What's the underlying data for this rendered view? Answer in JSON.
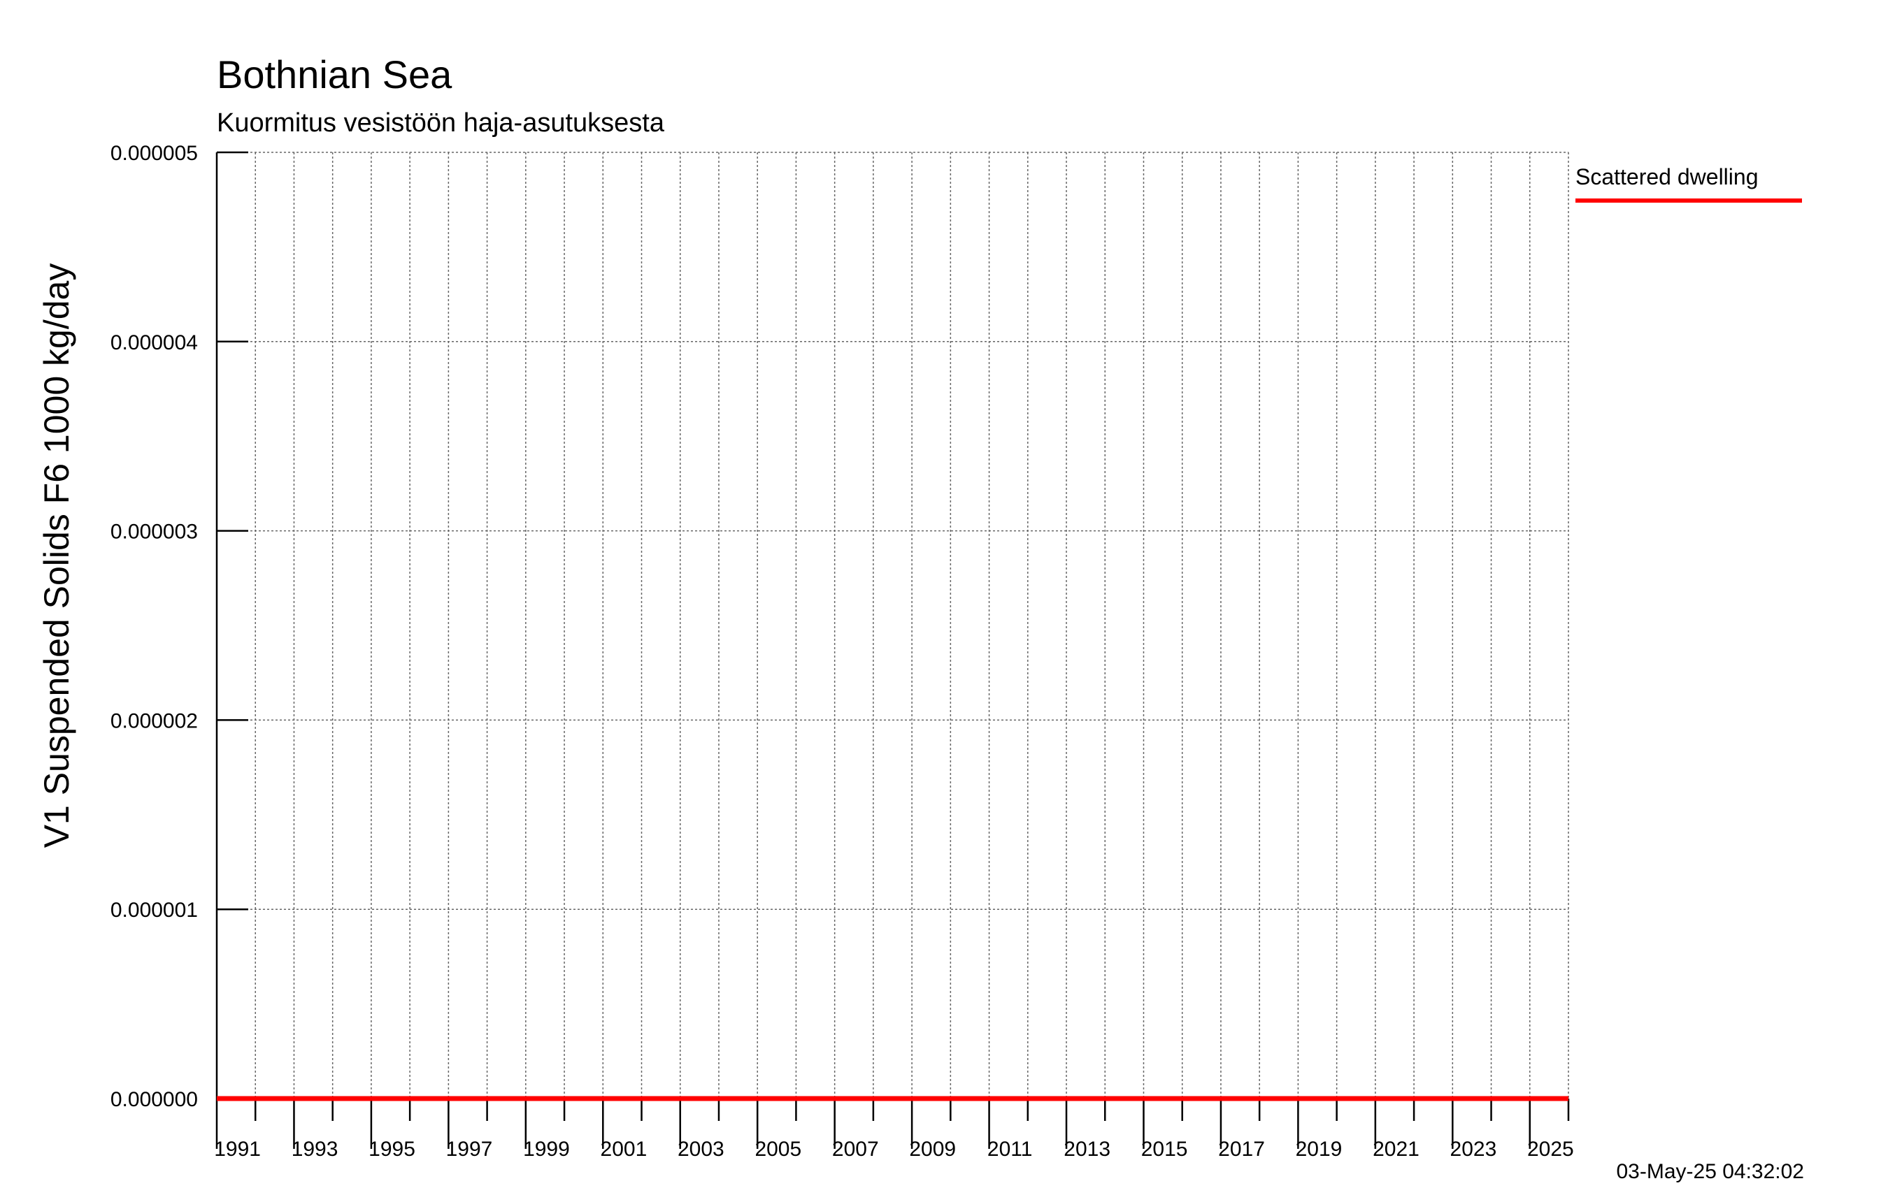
{
  "chart_data": {
    "type": "line",
    "title": "Bothnian Sea",
    "subtitle": "Kuormitus vesistöön haja-asutuksesta",
    "ylabel": "V1 Suspended Solids F6 1000 kg/day",
    "xlabel": "",
    "x_range": [
      1990,
      2025
    ],
    "ylim": [
      0,
      5e-06
    ],
    "y_ticks": [
      "0.000000",
      "0.000001",
      "0.000002",
      "0.000003",
      "0.000004",
      "0.000005"
    ],
    "x_tick_labels": [
      "1991",
      "1993",
      "1995",
      "1997",
      "1999",
      "2001",
      "2003",
      "2005",
      "2007",
      "2009",
      "2011",
      "2013",
      "2015",
      "2017",
      "2019",
      "2021",
      "2023",
      "2025"
    ],
    "grid": true,
    "legend": "right",
    "series": [
      {
        "name": "Scattered dwelling",
        "color": "#ff0000",
        "x": [
          1990,
          2025
        ],
        "y": [
          0,
          0
        ]
      }
    ],
    "timestamp": "03-May-25 04:32:02"
  }
}
